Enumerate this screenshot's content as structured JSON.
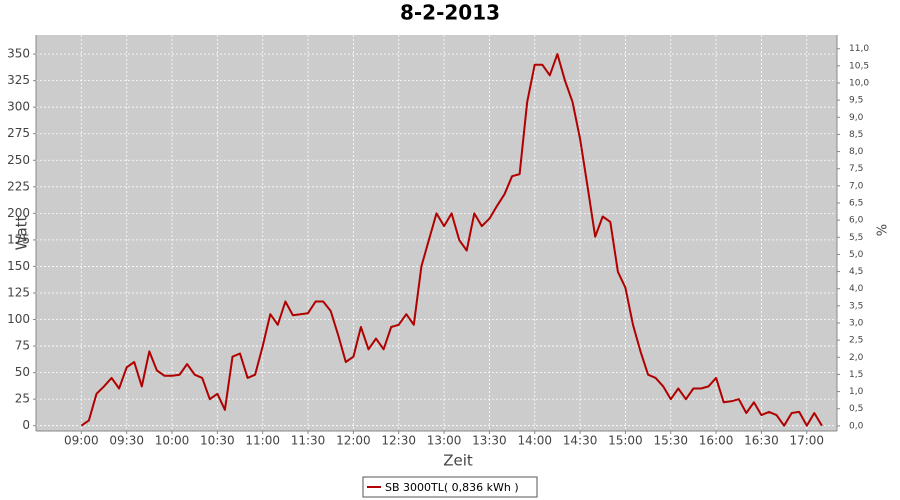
{
  "chart_data": {
    "type": "line",
    "title": "8-2-2013",
    "xlabel": "Zeit",
    "ylabel": "Watt",
    "y2label": "%",
    "x": [
      "09:00",
      "09:05",
      "09:10",
      "09:15",
      "09:20",
      "09:25",
      "09:30",
      "09:35",
      "09:40",
      "09:45",
      "09:50",
      "09:55",
      "10:00",
      "10:05",
      "10:10",
      "10:15",
      "10:20",
      "10:25",
      "10:30",
      "10:35",
      "10:40",
      "10:45",
      "10:50",
      "10:55",
      "11:00",
      "11:05",
      "11:10",
      "11:15",
      "11:20",
      "11:25",
      "11:30",
      "11:35",
      "11:40",
      "11:45",
      "11:50",
      "11:55",
      "12:00",
      "12:05",
      "12:10",
      "12:15",
      "12:20",
      "12:25",
      "12:30",
      "12:35",
      "12:40",
      "12:45",
      "12:50",
      "12:55",
      "13:00",
      "13:05",
      "13:10",
      "13:15",
      "13:20",
      "13:25",
      "13:30",
      "13:35",
      "13:40",
      "13:45",
      "13:50",
      "13:55",
      "14:00",
      "14:05",
      "14:10",
      "14:15",
      "14:20",
      "14:25",
      "14:30",
      "14:35",
      "14:40",
      "14:45",
      "14:50",
      "14:55",
      "15:00",
      "15:05",
      "15:10",
      "15:15",
      "15:20",
      "15:25",
      "15:30",
      "15:35",
      "15:40",
      "15:45",
      "15:50",
      "15:55",
      "16:00",
      "16:05",
      "16:10",
      "16:15",
      "16:20",
      "16:25",
      "16:30",
      "16:35",
      "16:40",
      "16:45",
      "16:50",
      "16:55",
      "17:00",
      "17:05",
      "17:10"
    ],
    "series": [
      {
        "name": "SB 3000TL( 0,836 kWh )",
        "color": "#b00000",
        "values": [
          0,
          5,
          30,
          37,
          45,
          35,
          55,
          60,
          37,
          70,
          52,
          47,
          47,
          48,
          58,
          48,
          45,
          25,
          30,
          15,
          65,
          68,
          45,
          48,
          75,
          105,
          95,
          117,
          104,
          105,
          106,
          117,
          117,
          108,
          85,
          60,
          65,
          93,
          72,
          82,
          72,
          93,
          95,
          105,
          95,
          150,
          175,
          200,
          188,
          200,
          175,
          165,
          200,
          188,
          195,
          207,
          218,
          235,
          237,
          305,
          340,
          340,
          330,
          350,
          325,
          305,
          270,
          225,
          178,
          197,
          192,
          145,
          130,
          95,
          70,
          48,
          45,
          37,
          25,
          35,
          25,
          35,
          35,
          37,
          45,
          22,
          23,
          25,
          12,
          22,
          10,
          13,
          10,
          0,
          12,
          13,
          0,
          12,
          0
        ]
      }
    ],
    "xlim": [
      "08:30",
      "17:20"
    ],
    "xticks": [
      "09:00",
      "09:30",
      "10:00",
      "10:30",
      "11:00",
      "11:30",
      "12:00",
      "12:30",
      "13:00",
      "13:30",
      "14:00",
      "14:30",
      "15:00",
      "15:30",
      "16:00",
      "16:30",
      "17:00"
    ],
    "ylim": [
      -5,
      368
    ],
    "yticks": [
      0,
      25,
      50,
      75,
      100,
      125,
      150,
      175,
      200,
      225,
      250,
      275,
      300,
      325,
      350
    ],
    "y2lim": [
      -0.15,
      11.4
    ],
    "y2ticks": [
      {
        "value": 0,
        "label": "0,0"
      },
      {
        "value": 0.5,
        "label": "0,5"
      },
      {
        "value": 1,
        "label": "1,0"
      },
      {
        "value": 1.5,
        "label": "1,5"
      },
      {
        "value": 2,
        "label": "2,0"
      },
      {
        "value": 2.5,
        "label": "2,5"
      },
      {
        "value": 3,
        "label": "3,0"
      },
      {
        "value": 3.5,
        "label": "3,5"
      },
      {
        "value": 4,
        "label": "4,0"
      },
      {
        "value": 4.5,
        "label": "4,5"
      },
      {
        "value": 5,
        "label": "5,0"
      },
      {
        "value": 5.5,
        "label": "5,5"
      },
      {
        "value": 6,
        "label": "6,0"
      },
      {
        "value": 6.5,
        "label": "6,5"
      },
      {
        "value": 7,
        "label": "7,0"
      },
      {
        "value": 7.5,
        "label": "7,5"
      },
      {
        "value": 8,
        "label": "8,0"
      },
      {
        "value": 8.5,
        "label": "8,5"
      },
      {
        "value": 9,
        "label": "9,0"
      },
      {
        "value": 9.5,
        "label": "9,5"
      },
      {
        "value": 10,
        "label": "10,0"
      },
      {
        "value": 10.5,
        "label": "10,5"
      },
      {
        "value": 11,
        "label": "11,0"
      }
    ],
    "grid": true
  }
}
